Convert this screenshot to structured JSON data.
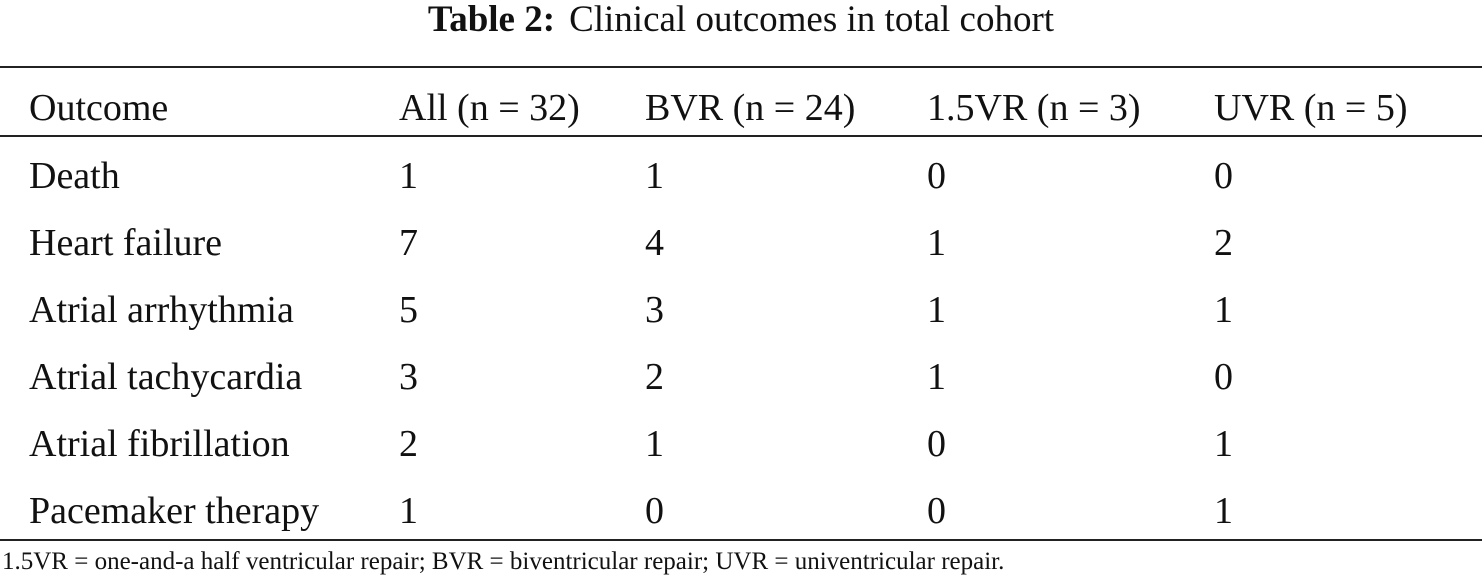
{
  "caption": {
    "label": "Table 2:",
    "title": "Clinical outcomes in total cohort"
  },
  "table": {
    "headers": [
      "Outcome",
      "All (n = 32)",
      "BVR (n = 24)",
      "1.5VR (n = 3)",
      "UVR (n = 5)"
    ],
    "rows": [
      [
        "Death",
        "1",
        "1",
        "0",
        "0"
      ],
      [
        "Heart failure",
        "7",
        "4",
        "1",
        "2"
      ],
      [
        "Atrial arrhythmia",
        "5",
        "3",
        "1",
        "1"
      ],
      [
        "Atrial tachycardia",
        "3",
        "2",
        "1",
        "0"
      ],
      [
        "Atrial fibrillation",
        "2",
        "1",
        "0",
        "1"
      ],
      [
        "Pacemaker therapy",
        "1",
        "0",
        "0",
        "1"
      ]
    ]
  },
  "footnote": "1.5VR = one-and-a half ventricular repair; BVR = biventricular repair; UVR = univentricular repair."
}
